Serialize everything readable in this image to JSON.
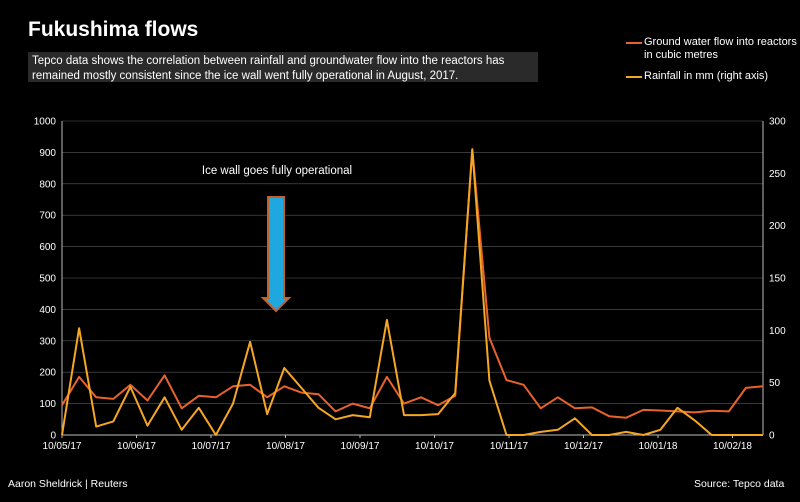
{
  "header": {
    "title": "Fukushima flows",
    "subtitle": "Tepco data shows the correlation between rainfall and groundwater flow into the reactors has remained mostly consistent since the ice wall went fully operational in August, 2017."
  },
  "footer": {
    "credit": "Aaron Sheldrick | Reuters",
    "source": "Source: Tepco data"
  },
  "chart_data": {
    "type": "line",
    "legend_placement": "top-right",
    "grid": true,
    "x_tick_labels": [
      "10/05/17",
      "10/06/17",
      "10/07/17",
      "10/08/17",
      "10/09/17",
      "10/10/17",
      "10/11/17",
      "10/12/17",
      "10/01/18",
      "10/02/18"
    ],
    "y_left": {
      "ticks": [
        0,
        100,
        200,
        300,
        400,
        500,
        600,
        700,
        800,
        900,
        1000
      ],
      "range": [
        0,
        1000
      ]
    },
    "y_right": {
      "ticks": [
        0,
        50,
        100,
        150,
        200,
        250,
        300
      ],
      "range": [
        0,
        300
      ]
    },
    "series": [
      {
        "name": "Ground water flow into reactors in cubic metres",
        "axis": "left",
        "color": "#e8622c",
        "values": [
          95,
          185,
          120,
          115,
          160,
          110,
          190,
          85,
          125,
          120,
          155,
          160,
          120,
          155,
          135,
          130,
          75,
          100,
          85,
          185,
          100,
          120,
          95,
          125,
          910,
          310,
          175,
          160,
          85,
          120,
          85,
          88,
          60,
          55,
          80,
          78,
          75,
          72,
          77,
          75,
          150,
          155
        ]
      },
      {
        "name": "Rainfall in mm (right axis)",
        "axis": "right",
        "color": "#f5a623",
        "values": [
          0,
          102,
          8,
          13,
          46,
          9,
          36,
          5,
          26,
          0,
          30,
          89,
          20,
          64,
          45,
          26,
          15,
          19,
          17,
          110,
          19,
          19,
          20,
          40,
          273,
          52,
          0,
          0,
          3,
          5,
          16,
          0,
          0,
          3,
          0,
          5,
          26,
          14,
          0,
          0,
          0,
          0
        ]
      }
    ],
    "annotation": {
      "text": "Ice wall goes fully operational",
      "arrow_color": "#1fa8e0",
      "arrow_border": "#c0622a"
    }
  }
}
